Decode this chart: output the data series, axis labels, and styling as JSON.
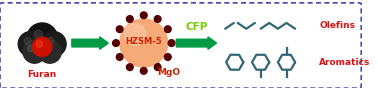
{
  "fig_width": 3.78,
  "fig_height": 0.9,
  "dpi": 100,
  "bg_color": "#ffffff",
  "border_color": "#4444aa",
  "furan_label": "Furan",
  "furan_label_color": "#dd1111",
  "hzsm5_label": "HZSM-5",
  "hzsm5_label_color": "#cc2200",
  "mgo_label": "MgO",
  "mgo_label_color": "#cc2200",
  "cfp_label": "CFP",
  "cfp_label_color": "#77cc00",
  "olefins_label": "Olefins",
  "olefins_label_color": "#dd1111",
  "aromatics_label": "Aromatics",
  "aromatics_label_color": "#dd1111",
  "arrow_color": "#009944",
  "catalyst_color": "#f5aa77",
  "dot_color": "#550000",
  "mol_color": "#336677"
}
